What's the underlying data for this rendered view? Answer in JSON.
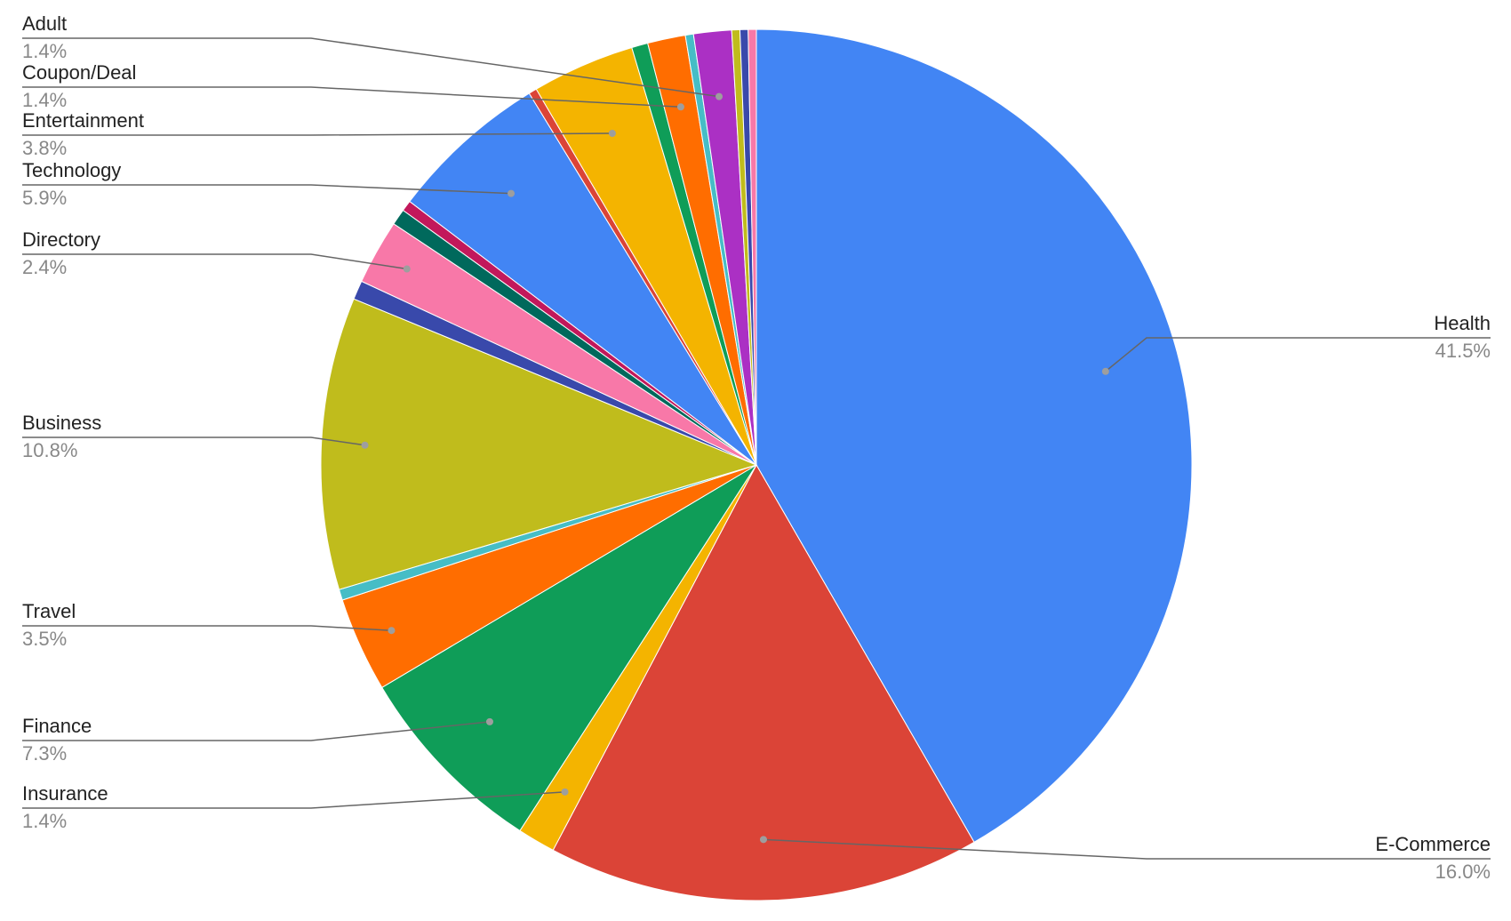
{
  "chart_data": {
    "type": "pie",
    "title": "",
    "start_angle_deg": 0,
    "slices": [
      {
        "label": "Health",
        "value": 41.5,
        "display": "41.5%",
        "color": "#4285F4",
        "side": "right"
      },
      {
        "label": "E-Commerce",
        "value": 16.0,
        "display": "16.0%",
        "color": "#DB4437",
        "side": "right"
      },
      {
        "label": "Insurance",
        "value": 1.4,
        "display": "1.4%",
        "color": "#F4B400",
        "side": "left"
      },
      {
        "label": "Finance",
        "value": 7.3,
        "display": "7.3%",
        "color": "#0F9D58",
        "side": "left"
      },
      {
        "label": "Travel",
        "value": 3.5,
        "display": "3.5%",
        "color": "#FF6D00",
        "side": "left"
      },
      {
        "label": "",
        "value": 0.4,
        "display": "",
        "color": "#46BDC6",
        "side": ""
      },
      {
        "label": "Business",
        "value": 10.8,
        "display": "10.8%",
        "color": "#C0BC1C",
        "side": "left"
      },
      {
        "label": "",
        "value": 0.7,
        "display": "",
        "color": "#3949AB",
        "side": ""
      },
      {
        "label": "Directory",
        "value": 2.4,
        "display": "2.4%",
        "color": "#F878A8",
        "side": "left"
      },
      {
        "label": "",
        "value": 0.6,
        "display": "",
        "color": "#00695C",
        "side": ""
      },
      {
        "label": "",
        "value": 0.4,
        "display": "",
        "color": "#C2185B",
        "side": ""
      },
      {
        "label": "Technology",
        "value": 5.9,
        "display": "5.9%",
        "color": "#4285F4",
        "side": "left"
      },
      {
        "label": "",
        "value": 0.3,
        "display": "",
        "color": "#DB4437",
        "side": ""
      },
      {
        "label": "Entertainment",
        "value": 3.8,
        "display": "3.8%",
        "color": "#F4B400",
        "side": "left"
      },
      {
        "label": "",
        "value": 0.6,
        "display": "",
        "color": "#0F9D58",
        "side": ""
      },
      {
        "label": "Coupon/Deal",
        "value": 1.4,
        "display": "1.4%",
        "color": "#FF6D00",
        "side": "left"
      },
      {
        "label": "",
        "value": 0.3,
        "display": "",
        "color": "#46BDC6",
        "side": ""
      },
      {
        "label": "Adult",
        "value": 1.4,
        "display": "1.4%",
        "color": "#AB30C4",
        "side": "left"
      },
      {
        "label": "",
        "value": 0.3,
        "display": "",
        "color": "#C0BC1C",
        "side": ""
      },
      {
        "label": "",
        "value": 0.3,
        "display": "",
        "color": "#3949AB",
        "side": ""
      },
      {
        "label": "",
        "value": 0.3,
        "display": "",
        "color": "#F878A8",
        "side": ""
      }
    ]
  }
}
